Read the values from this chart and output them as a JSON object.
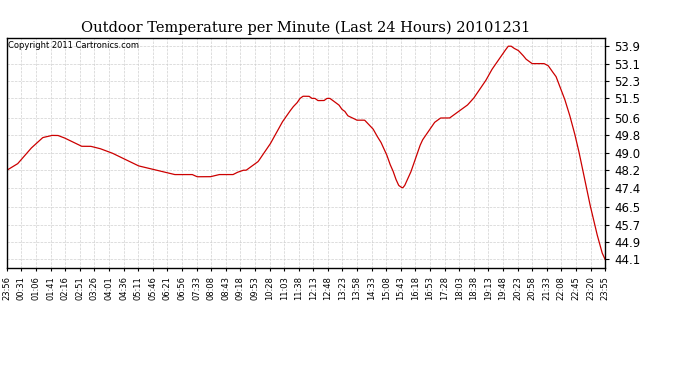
{
  "title": "Outdoor Temperature per Minute (Last 24 Hours) 20101231",
  "copyright": "Copyright 2011 Cartronics.com",
  "line_color": "#cc0000",
  "bg_color": "#ffffff",
  "grid_color": "#cccccc",
  "y_ticks": [
    44.1,
    44.9,
    45.7,
    46.5,
    47.4,
    48.2,
    49.0,
    49.8,
    50.6,
    51.5,
    52.3,
    53.1,
    53.9
  ],
  "ylim": [
    43.7,
    54.3
  ],
  "x_labels": [
    "23:56",
    "00:31",
    "01:06",
    "01:41",
    "02:16",
    "02:51",
    "03:26",
    "04:01",
    "04:36",
    "05:11",
    "05:46",
    "06:21",
    "06:56",
    "07:33",
    "08:08",
    "08:43",
    "09:18",
    "09:53",
    "10:28",
    "11:03",
    "11:38",
    "12:13",
    "12:48",
    "13:23",
    "13:58",
    "14:33",
    "15:08",
    "15:43",
    "16:18",
    "16:53",
    "17:28",
    "18:03",
    "18:38",
    "19:13",
    "19:48",
    "20:23",
    "20:58",
    "21:33",
    "22:08",
    "22:45",
    "23:20",
    "23:55"
  ],
  "waypoints": [
    [
      0.0,
      48.2
    ],
    [
      0.018,
      48.5
    ],
    [
      0.04,
      49.2
    ],
    [
      0.06,
      49.7
    ],
    [
      0.075,
      49.8
    ],
    [
      0.085,
      49.8
    ],
    [
      0.095,
      49.7
    ],
    [
      0.11,
      49.5
    ],
    [
      0.125,
      49.3
    ],
    [
      0.14,
      49.3
    ],
    [
      0.155,
      49.2
    ],
    [
      0.165,
      49.1
    ],
    [
      0.175,
      49.0
    ],
    [
      0.19,
      48.8
    ],
    [
      0.205,
      48.6
    ],
    [
      0.22,
      48.4
    ],
    [
      0.235,
      48.3
    ],
    [
      0.25,
      48.2
    ],
    [
      0.265,
      48.1
    ],
    [
      0.28,
      48.0
    ],
    [
      0.295,
      48.0
    ],
    [
      0.31,
      48.0
    ],
    [
      0.318,
      47.9
    ],
    [
      0.325,
      47.9
    ],
    [
      0.34,
      47.9
    ],
    [
      0.355,
      48.0
    ],
    [
      0.362,
      48.0
    ],
    [
      0.37,
      48.0
    ],
    [
      0.378,
      48.0
    ],
    [
      0.385,
      48.1
    ],
    [
      0.395,
      48.2
    ],
    [
      0.4,
      48.2
    ],
    [
      0.405,
      48.3
    ],
    [
      0.41,
      48.4
    ],
    [
      0.415,
      48.5
    ],
    [
      0.42,
      48.6
    ],
    [
      0.43,
      49.0
    ],
    [
      0.44,
      49.4
    ],
    [
      0.45,
      49.9
    ],
    [
      0.46,
      50.4
    ],
    [
      0.47,
      50.8
    ],
    [
      0.478,
      51.1
    ],
    [
      0.485,
      51.3
    ],
    [
      0.49,
      51.5
    ],
    [
      0.495,
      51.6
    ],
    [
      0.5,
      51.6
    ],
    [
      0.505,
      51.6
    ],
    [
      0.51,
      51.5
    ],
    [
      0.515,
      51.5
    ],
    [
      0.52,
      51.4
    ],
    [
      0.525,
      51.4
    ],
    [
      0.53,
      51.4
    ],
    [
      0.535,
      51.5
    ],
    [
      0.54,
      51.5
    ],
    [
      0.545,
      51.4
    ],
    [
      0.55,
      51.3
    ],
    [
      0.555,
      51.2
    ],
    [
      0.56,
      51.0
    ],
    [
      0.565,
      50.9
    ],
    [
      0.57,
      50.7
    ],
    [
      0.578,
      50.6
    ],
    [
      0.585,
      50.5
    ],
    [
      0.592,
      50.5
    ],
    [
      0.598,
      50.5
    ],
    [
      0.605,
      50.3
    ],
    [
      0.612,
      50.1
    ],
    [
      0.618,
      49.8
    ],
    [
      0.625,
      49.5
    ],
    [
      0.63,
      49.2
    ],
    [
      0.635,
      48.9
    ],
    [
      0.64,
      48.5
    ],
    [
      0.645,
      48.2
    ],
    [
      0.65,
      47.8
    ],
    [
      0.655,
      47.5
    ],
    [
      0.66,
      47.4
    ],
    [
      0.662,
      47.4
    ],
    [
      0.665,
      47.5
    ],
    [
      0.67,
      47.8
    ],
    [
      0.675,
      48.1
    ],
    [
      0.68,
      48.5
    ],
    [
      0.685,
      48.9
    ],
    [
      0.69,
      49.3
    ],
    [
      0.695,
      49.6
    ],
    [
      0.7,
      49.8
    ],
    [
      0.705,
      50.0
    ],
    [
      0.71,
      50.2
    ],
    [
      0.715,
      50.4
    ],
    [
      0.72,
      50.5
    ],
    [
      0.725,
      50.6
    ],
    [
      0.73,
      50.6
    ],
    [
      0.735,
      50.6
    ],
    [
      0.74,
      50.6
    ],
    [
      0.745,
      50.7
    ],
    [
      0.75,
      50.8
    ],
    [
      0.76,
      51.0
    ],
    [
      0.77,
      51.2
    ],
    [
      0.78,
      51.5
    ],
    [
      0.79,
      51.9
    ],
    [
      0.8,
      52.3
    ],
    [
      0.81,
      52.8
    ],
    [
      0.82,
      53.2
    ],
    [
      0.83,
      53.6
    ],
    [
      0.838,
      53.9
    ],
    [
      0.843,
      53.9
    ],
    [
      0.848,
      53.8
    ],
    [
      0.855,
      53.7
    ],
    [
      0.862,
      53.5
    ],
    [
      0.868,
      53.3
    ],
    [
      0.873,
      53.2
    ],
    [
      0.878,
      53.1
    ],
    [
      0.885,
      53.1
    ],
    [
      0.892,
      53.1
    ],
    [
      0.898,
      53.1
    ],
    [
      0.905,
      53.0
    ],
    [
      0.91,
      52.8
    ],
    [
      0.918,
      52.5
    ],
    [
      0.925,
      52.0
    ],
    [
      0.932,
      51.5
    ],
    [
      0.94,
      50.8
    ],
    [
      0.948,
      50.0
    ],
    [
      0.955,
      49.2
    ],
    [
      0.962,
      48.3
    ],
    [
      0.968,
      47.5
    ],
    [
      0.974,
      46.7
    ],
    [
      0.98,
      46.0
    ],
    [
      0.986,
      45.3
    ],
    [
      0.991,
      44.8
    ],
    [
      0.995,
      44.4
    ],
    [
      1.0,
      44.1
    ]
  ]
}
